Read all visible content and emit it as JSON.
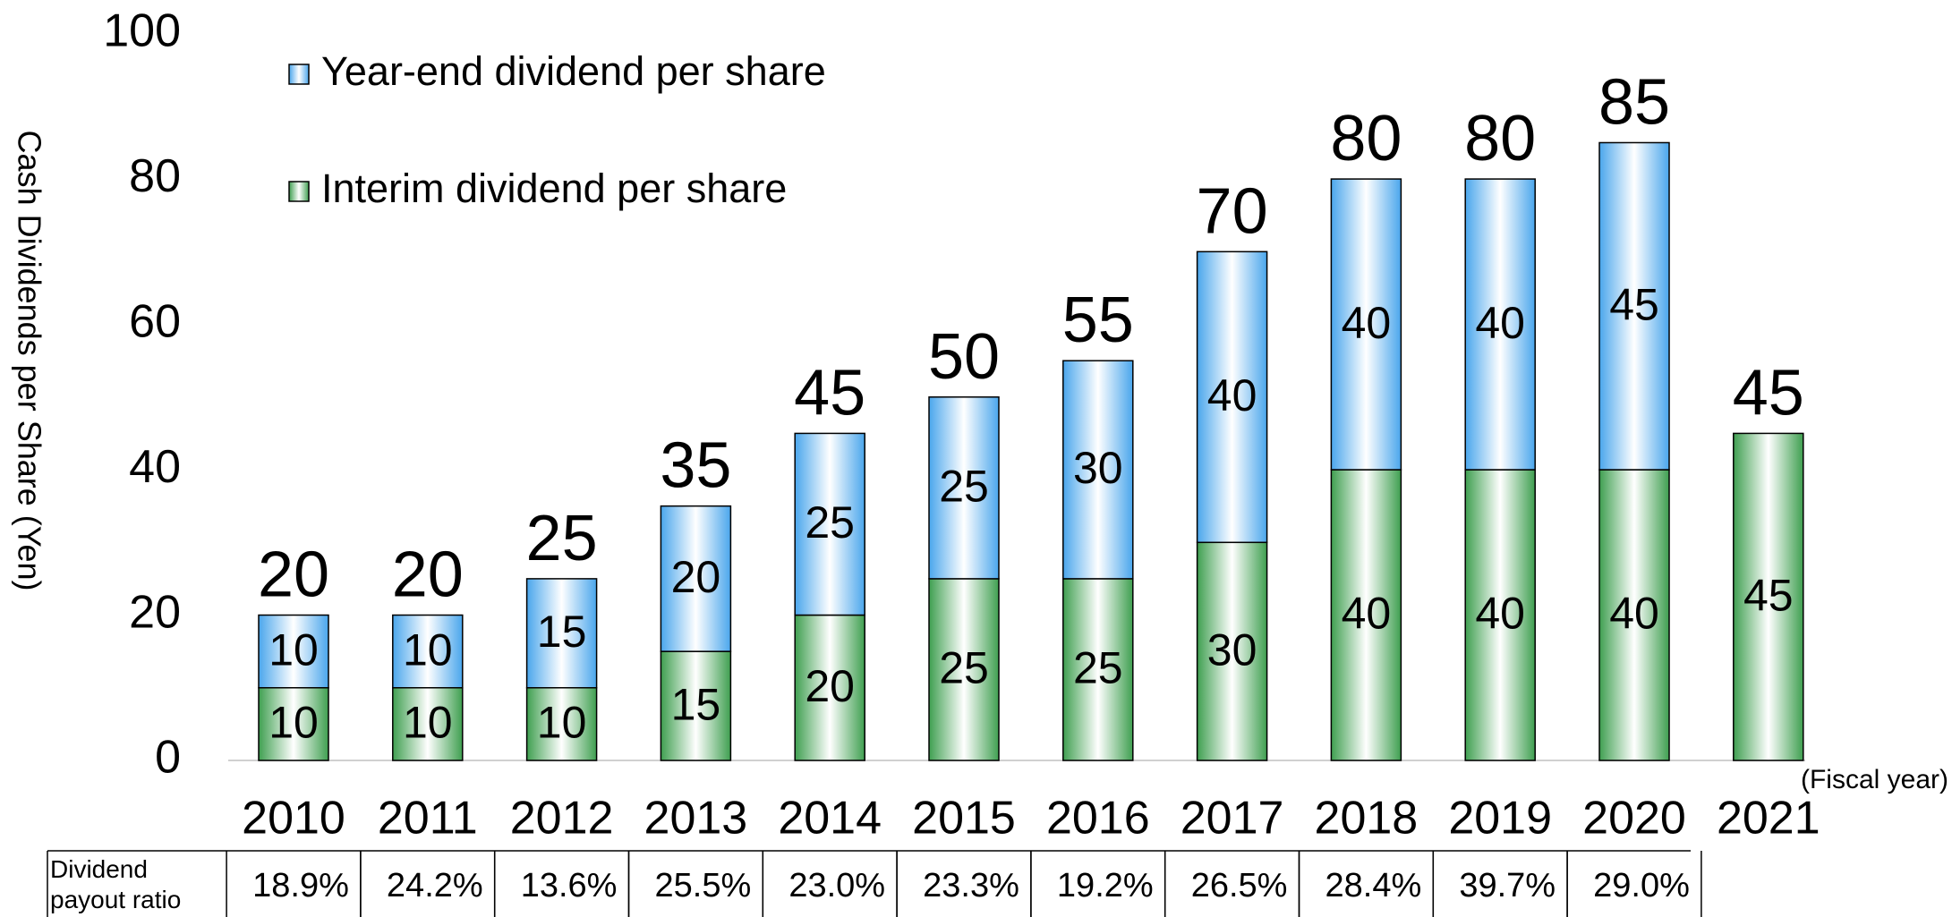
{
  "chart_data": {
    "type": "stacked_bar",
    "y_axis_label": "Cash Dividends per Share (Yen)",
    "x_axis_label": "(Fiscal year)",
    "categories": [
      "2010",
      "2011",
      "2012",
      "2013",
      "2014",
      "2015",
      "2016",
      "2017",
      "2018",
      "2019",
      "2020",
      "2021"
    ],
    "series": [
      {
        "name": "Interim dividend per share",
        "color": "#3f9f50",
        "values": [
          10,
          10,
          10,
          15,
          20,
          25,
          25,
          30,
          40,
          40,
          40,
          45
        ]
      },
      {
        "name": "Year-end dividend per share",
        "color": "#4aa6ec",
        "values": [
          10,
          10,
          15,
          20,
          25,
          25,
          30,
          40,
          40,
          40,
          45,
          null
        ]
      }
    ],
    "totals": [
      20,
      20,
      25,
      35,
      45,
      50,
      55,
      70,
      80,
      80,
      85,
      45
    ],
    "ylim": [
      0,
      100
    ],
    "yticks": [
      0,
      20,
      40,
      60,
      80,
      100
    ],
    "grid": false,
    "legend": "top-left",
    "table": {
      "row_label": "Dividend payout ratio",
      "values": [
        18.9,
        24.2,
        13.6,
        25.5,
        23.0,
        23.3,
        19.2,
        26.5,
        28.4,
        39.7,
        29.0,
        null
      ],
      "value_labels": [
        "18.9%",
        "24.2%",
        "13.6%",
        "25.5%",
        "23.0%",
        "23.3%",
        "19.2%",
        "26.5%",
        "28.4%",
        "39.7%",
        "29.0%",
        null
      ]
    }
  }
}
